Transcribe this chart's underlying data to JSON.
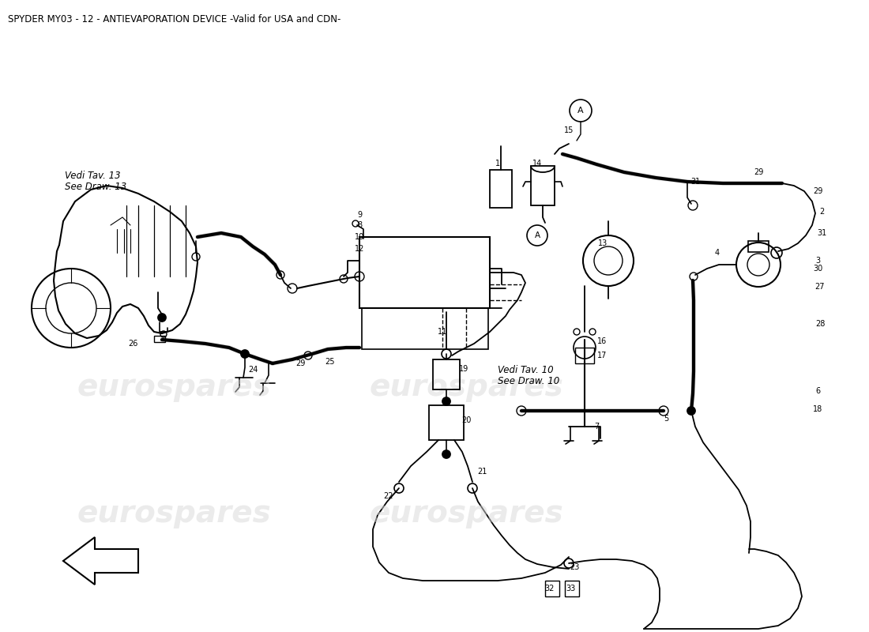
{
  "title": "SPYDER MY03 - 12 - ANTIEVAPORATION DEVICE -Valid for USA and CDN-",
  "title_fontsize": 8.5,
  "bg_color": "#ffffff",
  "line_color": "#000000",
  "watermark_color": "#cccccc",
  "note1": "Vedi Tav. 13",
  "note1b": "See Draw. 13",
  "note2": "Vedi Tav. 10",
  "note2b": "See Draw. 10"
}
